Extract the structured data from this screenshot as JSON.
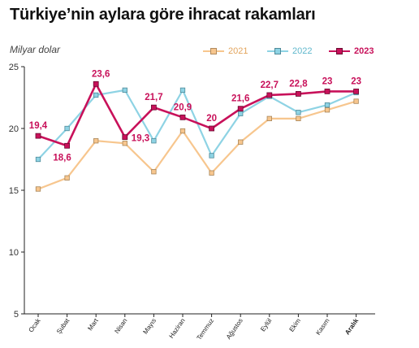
{
  "header": {
    "title": "Türkiye’nin aylara göre ihracat rakamları",
    "unit_label": "Milyar dolar"
  },
  "colors": {
    "s2021": "#f7c68e",
    "s2022": "#8ed3e4",
    "s2023": "#c8115a",
    "axis": "#222222",
    "grid": "#dddddd"
  },
  "chart_data": {
    "type": "line",
    "title": "Türkiye’nin aylara göre ihracat rakamları",
    "ylabel": "Milyar dolar",
    "xlabel": "",
    "ylim": [
      5,
      25
    ],
    "yticks": [
      5,
      10,
      15,
      20,
      25
    ],
    "grid": false,
    "legend_position": "top-right",
    "categories": [
      "Ocak",
      "Şubat",
      "Mart",
      "Nisan",
      "Mayıs",
      "Haziran",
      "Temmuz",
      "Ağustos",
      "Eylül",
      "Ekim",
      "Kasım",
      "Aralık"
    ],
    "series": [
      {
        "name": "2021",
        "values": [
          15.1,
          16.0,
          19.0,
          18.8,
          16.5,
          19.8,
          16.4,
          18.9,
          20.8,
          20.8,
          21.5,
          22.2
        ]
      },
      {
        "name": "2022",
        "values": [
          17.5,
          20.0,
          22.7,
          23.1,
          19.0,
          23.1,
          17.8,
          21.2,
          22.6,
          21.3,
          21.9,
          22.9
        ]
      },
      {
        "name": "2023",
        "values": [
          19.4,
          18.6,
          23.6,
          19.3,
          21.7,
          20.9,
          20.0,
          21.6,
          22.7,
          22.8,
          23.0,
          23.0
        ],
        "labels": [
          "19,4",
          "18,6",
          "23,6",
          "19,3",
          "21,7",
          "20,9",
          "20",
          "21,6",
          "22,7",
          "22,8",
          "23",
          "23"
        ]
      }
    ]
  }
}
